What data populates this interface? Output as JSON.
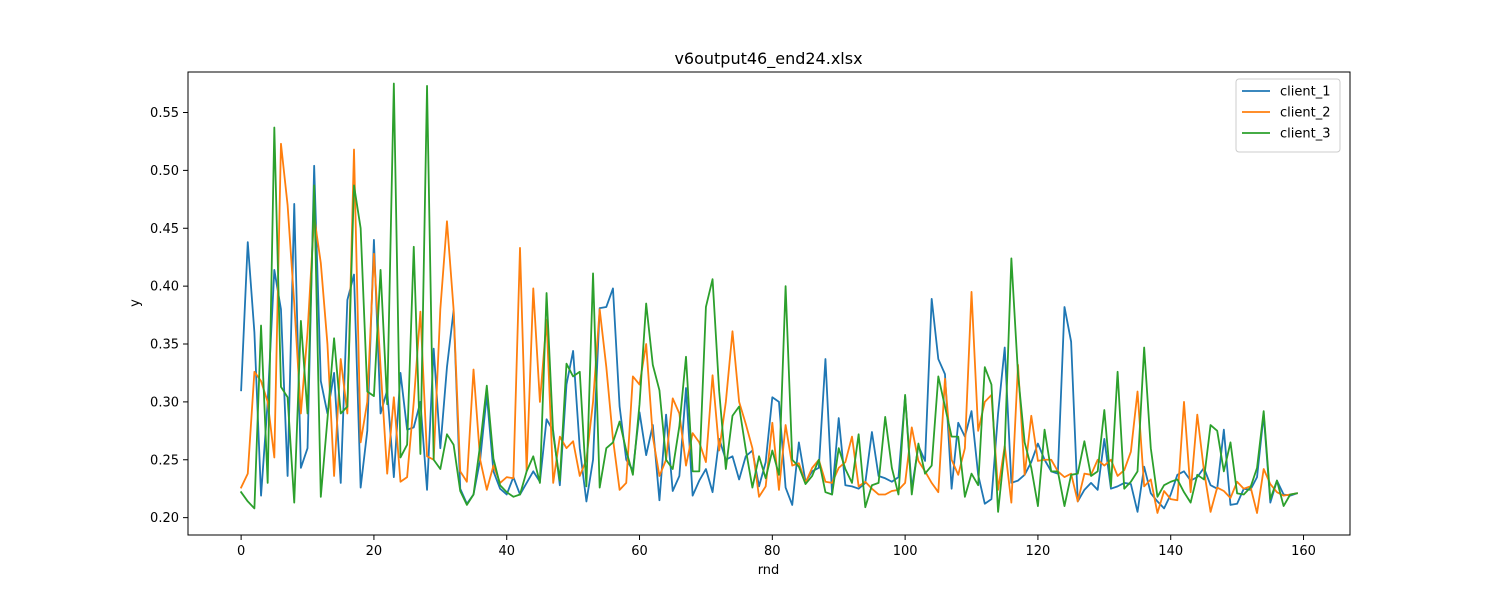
{
  "chart_data": {
    "type": "line",
    "title": "v6output46_end24.xlsx",
    "xlabel": "rnd",
    "ylabel": "y",
    "xlim": [
      -8,
      167
    ],
    "ylim": [
      0.185,
      0.585
    ],
    "xticks": [
      0,
      20,
      40,
      60,
      80,
      100,
      120,
      140,
      160
    ],
    "yticks": [
      0.2,
      0.25,
      0.3,
      0.35,
      0.4,
      0.45,
      0.5,
      0.55
    ],
    "ytick_labels": [
      "0.20",
      "0.25",
      "0.30",
      "0.35",
      "0.40",
      "0.45",
      "0.50",
      "0.55"
    ],
    "grid": false,
    "legend_position": "top-right",
    "x": [
      0,
      1,
      2,
      3,
      4,
      5,
      6,
      7,
      8,
      9,
      10,
      11,
      12,
      13,
      14,
      15,
      16,
      17,
      18,
      19,
      20,
      21,
      22,
      23,
      24,
      25,
      26,
      27,
      28,
      29,
      30,
      31,
      32,
      33,
      34,
      35,
      36,
      37,
      38,
      39,
      40,
      41,
      42,
      43,
      44,
      45,
      46,
      47,
      48,
      49,
      50,
      51,
      52,
      53,
      54,
      55,
      56,
      57,
      58,
      59,
      60,
      61,
      62,
      63,
      64,
      65,
      66,
      67,
      68,
      69,
      70,
      71,
      72,
      73,
      74,
      75,
      76,
      77,
      78,
      79,
      80,
      81,
      82,
      83,
      84,
      85,
      86,
      87,
      88,
      89,
      90,
      91,
      92,
      93,
      94,
      95,
      96,
      97,
      98,
      99,
      100,
      101,
      102,
      103,
      104,
      105,
      106,
      107,
      108,
      109,
      110,
      111,
      112,
      113,
      114,
      115,
      116,
      117,
      118,
      119,
      120,
      121,
      122,
      123,
      124,
      125,
      126,
      127,
      128,
      129,
      130,
      131,
      132,
      133,
      134,
      135,
      136,
      137,
      138,
      139,
      140,
      141,
      142,
      143,
      144,
      145,
      146,
      147,
      148,
      149,
      150,
      151,
      152,
      153,
      154,
      155,
      156,
      157,
      158,
      159
    ],
    "series": [
      {
        "name": "client_1",
        "color": "#1f77b4",
        "values": [
          0.31,
          0.438,
          0.36,
          0.219,
          0.3,
          0.414,
          0.38,
          0.236,
          0.471,
          0.243,
          0.26,
          0.504,
          0.318,
          0.29,
          0.325,
          0.23,
          0.388,
          0.41,
          0.226,
          0.275,
          0.44,
          0.29,
          0.31,
          0.235,
          0.325,
          0.276,
          0.278,
          0.3,
          0.224,
          0.346,
          0.26,
          0.33,
          0.379,
          0.225,
          0.212,
          0.22,
          0.25,
          0.306,
          0.24,
          0.225,
          0.22,
          0.235,
          0.22,
          0.23,
          0.24,
          0.231,
          0.285,
          0.275,
          0.228,
          0.315,
          0.344,
          0.26,
          0.214,
          0.25,
          0.381,
          0.382,
          0.398,
          0.296,
          0.25,
          0.241,
          0.291,
          0.254,
          0.28,
          0.215,
          0.289,
          0.223,
          0.236,
          0.312,
          0.219,
          0.232,
          0.242,
          0.222,
          0.268,
          0.25,
          0.253,
          0.233,
          0.253,
          0.258,
          0.227,
          0.248,
          0.304,
          0.3,
          0.226,
          0.211,
          0.265,
          0.231,
          0.24,
          0.243,
          0.337,
          0.22,
          0.286,
          0.228,
          0.227,
          0.225,
          0.23,
          0.274,
          0.236,
          0.234,
          0.231,
          0.235,
          0.305,
          0.225,
          0.262,
          0.249,
          0.389,
          0.337,
          0.324,
          0.225,
          0.282,
          0.27,
          0.292,
          0.237,
          0.212,
          0.216,
          0.29,
          0.347,
          0.23,
          0.232,
          0.237,
          0.248,
          0.264,
          0.25,
          0.24,
          0.238,
          0.382,
          0.352,
          0.214,
          0.224,
          0.23,
          0.224,
          0.268,
          0.225,
          0.227,
          0.23,
          0.229,
          0.205,
          0.244,
          0.221,
          0.214,
          0.208,
          0.22,
          0.237,
          0.24,
          0.232,
          0.235,
          0.243,
          0.228,
          0.225,
          0.276,
          0.211,
          0.212,
          0.225,
          0.224,
          0.235,
          0.289,
          0.213,
          0.232,
          0.22,
          0.219,
          0.221
        ]
      },
      {
        "name": "client_2",
        "color": "#ff7f0e",
        "values": [
          0.226,
          0.238,
          0.326,
          0.318,
          0.3,
          0.252,
          0.523,
          0.47,
          0.385,
          0.29,
          0.36,
          0.46,
          0.42,
          0.35,
          0.236,
          0.337,
          0.29,
          0.518,
          0.265,
          0.3,
          0.428,
          0.33,
          0.238,
          0.304,
          0.231,
          0.235,
          0.3,
          0.378,
          0.253,
          0.25,
          0.38,
          0.456,
          0.38,
          0.24,
          0.231,
          0.328,
          0.25,
          0.224,
          0.245,
          0.23,
          0.235,
          0.234,
          0.433,
          0.24,
          0.398,
          0.3,
          0.371,
          0.23,
          0.27,
          0.26,
          0.266,
          0.236,
          0.25,
          0.3,
          0.38,
          0.33,
          0.268,
          0.224,
          0.23,
          0.322,
          0.315,
          0.35,
          0.27,
          0.236,
          0.25,
          0.303,
          0.29,
          0.245,
          0.273,
          0.265,
          0.248,
          0.323,
          0.258,
          0.3,
          0.361,
          0.3,
          0.281,
          0.26,
          0.218,
          0.227,
          0.282,
          0.224,
          0.28,
          0.245,
          0.247,
          0.23,
          0.243,
          0.25,
          0.231,
          0.23,
          0.243,
          0.248,
          0.27,
          0.227,
          0.231,
          0.225,
          0.22,
          0.22,
          0.223,
          0.224,
          0.23,
          0.278,
          0.249,
          0.24,
          0.23,
          0.222,
          0.32,
          0.25,
          0.237,
          0.26,
          0.395,
          0.275,
          0.3,
          0.306,
          0.224,
          0.262,
          0.213,
          0.332,
          0.237,
          0.288,
          0.249,
          0.25,
          0.25,
          0.24,
          0.235,
          0.238,
          0.214,
          0.238,
          0.237,
          0.25,
          0.245,
          0.25,
          0.236,
          0.241,
          0.257,
          0.309,
          0.227,
          0.233,
          0.204,
          0.223,
          0.216,
          0.215,
          0.3,
          0.222,
          0.289,
          0.241,
          0.205,
          0.226,
          0.223,
          0.217,
          0.231,
          0.225,
          0.227,
          0.204,
          0.242,
          0.229,
          0.222,
          0.219,
          0.22,
          0.221
        ]
      },
      {
        "name": "client_3",
        "color": "#2ca02c",
        "values": [
          0.222,
          0.214,
          0.208,
          0.366,
          0.23,
          0.537,
          0.313,
          0.304,
          0.213,
          0.37,
          0.29,
          0.487,
          0.218,
          0.285,
          0.355,
          0.29,
          0.296,
          0.487,
          0.45,
          0.309,
          0.305,
          0.414,
          0.298,
          0.575,
          0.252,
          0.263,
          0.434,
          0.255,
          0.573,
          0.25,
          0.242,
          0.272,
          0.263,
          0.223,
          0.211,
          0.22,
          0.263,
          0.314,
          0.251,
          0.228,
          0.222,
          0.218,
          0.22,
          0.24,
          0.253,
          0.23,
          0.394,
          0.272,
          0.232,
          0.333,
          0.322,
          0.326,
          0.227,
          0.411,
          0.226,
          0.26,
          0.265,
          0.283,
          0.258,
          0.237,
          0.298,
          0.385,
          0.332,
          0.31,
          0.25,
          0.242,
          0.279,
          0.339,
          0.24,
          0.24,
          0.382,
          0.406,
          0.309,
          0.242,
          0.288,
          0.296,
          0.259,
          0.226,
          0.253,
          0.234,
          0.258,
          0.237,
          0.4,
          0.25,
          0.244,
          0.229,
          0.236,
          0.25,
          0.222,
          0.22,
          0.26,
          0.242,
          0.23,
          0.272,
          0.209,
          0.228,
          0.23,
          0.287,
          0.243,
          0.22,
          0.306,
          0.22,
          0.264,
          0.238,
          0.245,
          0.322,
          0.296,
          0.27,
          0.27,
          0.218,
          0.238,
          0.228,
          0.33,
          0.315,
          0.205,
          0.26,
          0.424,
          0.324,
          0.265,
          0.243,
          0.21,
          0.276,
          0.24,
          0.24,
          0.21,
          0.237,
          0.238,
          0.266,
          0.236,
          0.24,
          0.293,
          0.227,
          0.326,
          0.225,
          0.231,
          0.24,
          0.347,
          0.26,
          0.218,
          0.228,
          0.231,
          0.233,
          0.222,
          0.213,
          0.237,
          0.233,
          0.28,
          0.275,
          0.24,
          0.265,
          0.221,
          0.22,
          0.226,
          0.243,
          0.292,
          0.216,
          0.232,
          0.21,
          0.22,
          0.221
        ]
      }
    ]
  }
}
